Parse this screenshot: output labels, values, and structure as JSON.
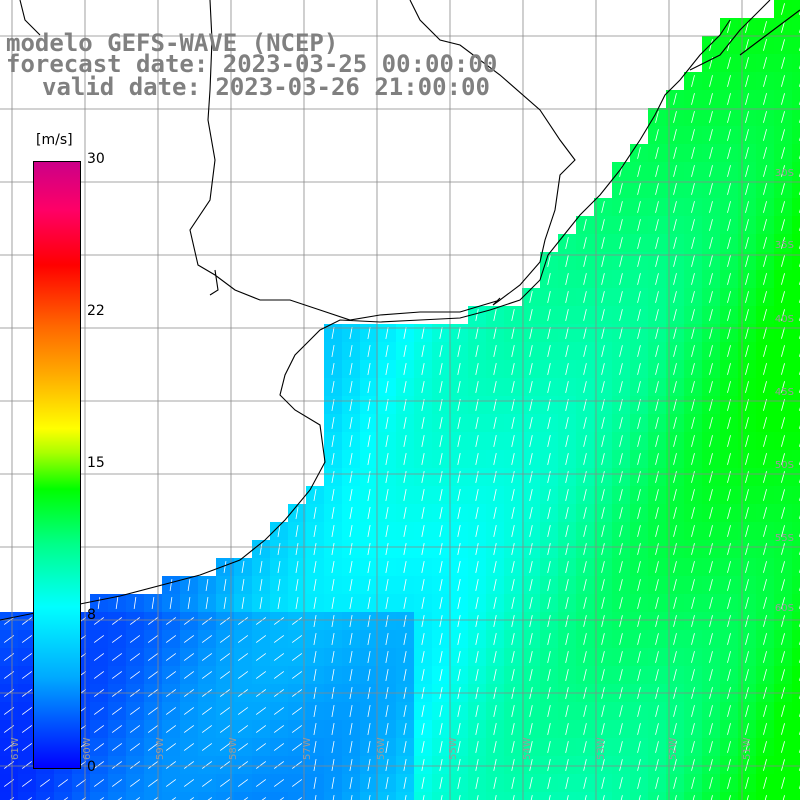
{
  "title": {
    "line1": "modelo GEFS-WAVE (NCEP)",
    "line2": "forecast date: 2023-03-25 00:00:00",
    "line3": "valid date: 2023-03-26 21:00:00"
  },
  "colorbar": {
    "unit": "[m/s]",
    "ticks": [
      "30",
      "22",
      "15",
      "8",
      "0"
    ],
    "range": [
      0,
      30
    ],
    "colors": [
      "#0000ff",
      "#00aaff",
      "#00ffff",
      "#00ff88",
      "#00ff00",
      "#ffff00",
      "#ff6600",
      "#ff0000",
      "#cc0088"
    ]
  },
  "map": {
    "parameter": "wind speed and direction",
    "lat_labels": [
      "30S",
      "35S",
      "40S",
      "45S",
      "50S",
      "55S",
      "60S"
    ],
    "lon_labels": [
      "61W",
      "60W",
      "59W",
      "58W",
      "57W",
      "56W",
      "55W",
      "54W",
      "53W",
      "52W",
      "51W"
    ],
    "land_color": "#ffffff",
    "grid_color": "#888888",
    "coast_color": "#000000"
  }
}
